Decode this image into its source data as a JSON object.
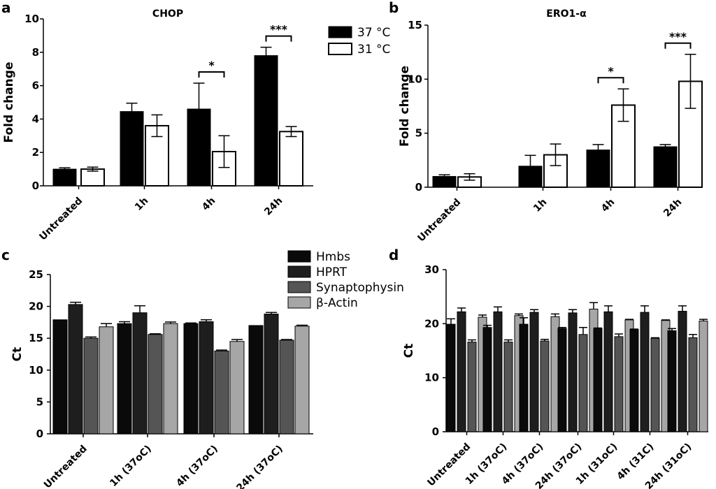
{
  "chart_data": [
    {
      "panel": "a",
      "type": "bar",
      "title": "CHOP",
      "ylabel": "Fold change",
      "xlabel": "",
      "ylim": [
        0,
        10
      ],
      "yticks": [
        0,
        2,
        4,
        6,
        8,
        10
      ],
      "grid": false,
      "legend_position": "top-right",
      "categories": [
        "Untreated",
        "1h",
        "4h",
        "24h"
      ],
      "series": [
        {
          "name": "37 °C",
          "color": "#000000",
          "fill": "solid",
          "values": [
            1.0,
            4.45,
            4.6,
            7.8
          ],
          "errors": [
            0.08,
            0.5,
            1.55,
            0.5
          ]
        },
        {
          "name": "31 °C",
          "color": "#000000",
          "fill": "open",
          "values": [
            1.0,
            3.6,
            2.05,
            3.25
          ],
          "errors": [
            0.12,
            0.65,
            0.95,
            0.3
          ]
        }
      ],
      "significance": [
        {
          "category": "4h",
          "label": "*"
        },
        {
          "category": "24h",
          "label": "***"
        }
      ]
    },
    {
      "panel": "b",
      "type": "bar",
      "title": "ERO1-α",
      "ylabel": "Fold change",
      "xlabel": "",
      "ylim": [
        0,
        15
      ],
      "yticks": [
        0,
        5,
        10,
        15
      ],
      "grid": false,
      "categories": [
        "Untreated",
        "1h",
        "4h",
        "24h"
      ],
      "series": [
        {
          "name": "37 °C",
          "color": "#000000",
          "fill": "solid",
          "values": [
            1.0,
            1.95,
            3.45,
            3.75
          ],
          "errors": [
            0.15,
            1.0,
            0.5,
            0.2
          ]
        },
        {
          "name": "31 °C",
          "color": "#000000",
          "fill": "open",
          "values": [
            0.95,
            3.0,
            7.6,
            9.8
          ],
          "errors": [
            0.3,
            1.0,
            1.5,
            2.5
          ]
        }
      ],
      "significance": [
        {
          "category": "4h",
          "label": "*"
        },
        {
          "category": "24h",
          "label": "***"
        }
      ]
    },
    {
      "panel": "c",
      "type": "bar",
      "title": "",
      "ylabel": "Ct",
      "xlabel": "",
      "ylim": [
        0,
        25
      ],
      "yticks": [
        0,
        5,
        10,
        15,
        20,
        25
      ],
      "grid": false,
      "legend_position": "top-right",
      "categories": [
        "Untreated",
        "1h (37oC)",
        "4h (37oC)",
        "24h (37oC)"
      ],
      "series": [
        {
          "name": "Hmbs",
          "color": "#0a0a0a",
          "values": [
            17.9,
            17.3,
            17.3,
            17.0
          ],
          "errors": [
            0.0,
            0.3,
            0.1,
            0.0
          ]
        },
        {
          "name": "HPRT",
          "color": "#1e1e1e",
          "values": [
            20.3,
            19.0,
            17.6,
            18.8
          ],
          "errors": [
            0.35,
            1.1,
            0.3,
            0.25
          ]
        },
        {
          "name": "Synaptophysin",
          "color": "#555555",
          "values": [
            15.0,
            15.6,
            13.0,
            14.7
          ],
          "errors": [
            0.2,
            0.1,
            0.15,
            0.1
          ]
        },
        {
          "name": "β-Actin",
          "color": "#a6a6a6",
          "values": [
            16.8,
            17.3,
            14.5,
            16.9
          ],
          "errors": [
            0.5,
            0.25,
            0.3,
            0.15
          ]
        }
      ]
    },
    {
      "panel": "d",
      "type": "bar",
      "title": "",
      "ylabel": "Ct",
      "xlabel": "",
      "ylim": [
        0,
        30
      ],
      "yticks": [
        0,
        10,
        20,
        30
      ],
      "grid": false,
      "categories": [
        "Untreated",
        "1h (37oC)",
        "4h (37oC)",
        "24h (37oC)",
        "1h (31oC)",
        "4h (31C)",
        "24h (31oC)"
      ],
      "series": [
        {
          "name": "Hmbs",
          "color": "#0a0a0a",
          "values": [
            19.9,
            19.3,
            19.9,
            19.1,
            19.1,
            18.9,
            18.7
          ],
          "errors": [
            1.0,
            0.4,
            1.2,
            0.2,
            0.1,
            0.1,
            0.4
          ]
        },
        {
          "name": "HPRT",
          "color": "#1e1e1e",
          "values": [
            22.2,
            22.2,
            22.1,
            22.0,
            22.2,
            22.1,
            22.3
          ],
          "errors": [
            0.7,
            0.9,
            0.5,
            0.6,
            1.1,
            1.2,
            1.0
          ]
        },
        {
          "name": "Synaptophysin",
          "color": "#555555",
          "values": [
            16.6,
            16.6,
            16.8,
            18.0,
            17.6,
            17.3,
            17.4
          ],
          "errors": [
            0.4,
            0.4,
            0.3,
            1.3,
            0.5,
            0.1,
            0.6
          ]
        },
        {
          "name": "β-Actin",
          "color": "#a6a6a6",
          "values": [
            21.2,
            21.5,
            21.3,
            22.7,
            20.7,
            20.6,
            20.5
          ],
          "errors": [
            0.4,
            0.3,
            0.5,
            1.2,
            0.1,
            0.1,
            0.3
          ]
        }
      ]
    }
  ]
}
